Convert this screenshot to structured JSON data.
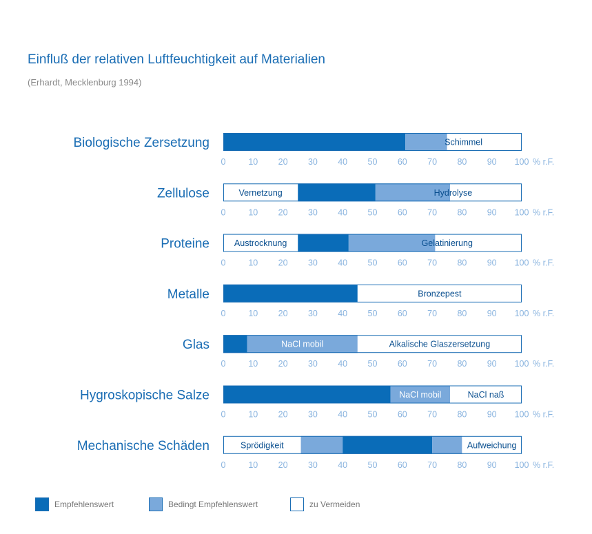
{
  "title": "Einfluß der relativen Luftfeuchtigkeit auf Materialien",
  "subtitle": "(Erhardt, Mecklenburg 1994)",
  "chart_data": {
    "type": "bar",
    "orientation": "horizontal-stacked-ranges",
    "x_ticks": [
      "0",
      "10",
      "20",
      "30",
      "40",
      "50",
      "60",
      "70",
      "80",
      "90",
      "100"
    ],
    "x_unit": "% r.F.",
    "xlim": [
      0,
      100
    ],
    "colors": {
      "empfohlen": "#0a6cb8",
      "bedingt": "#7aa9db",
      "vermeiden": "#ffffff",
      "border": "#1a6db4",
      "label": "#1a6db4",
      "tick": "#8ab4df"
    },
    "rows": [
      {
        "label": "Biologische Zersetzung",
        "segments": [
          {
            "start": 0,
            "end": 61,
            "category": "empfohlen",
            "text": ""
          },
          {
            "start": 61,
            "end": 75,
            "category": "bedingt",
            "text": ""
          },
          {
            "start": 75,
            "end": 100,
            "category": "vermeiden",
            "text": ""
          }
        ],
        "annotations": [
          {
            "text": "Schimmel",
            "at": 80.5
          }
        ]
      },
      {
        "label": "Zellulose",
        "segments": [
          {
            "start": 0,
            "end": 25,
            "category": "vermeiden",
            "text": "Vernetzung"
          },
          {
            "start": 25,
            "end": 51,
            "category": "empfohlen",
            "text": ""
          },
          {
            "start": 51,
            "end": 76,
            "category": "bedingt",
            "text": ""
          },
          {
            "start": 76,
            "end": 100,
            "category": "vermeiden",
            "text": ""
          }
        ],
        "annotations": [
          {
            "text": "Hydrolyse",
            "at": 77
          }
        ]
      },
      {
        "label": "Proteine",
        "segments": [
          {
            "start": 0,
            "end": 25,
            "category": "vermeiden",
            "text": "Austrocknung"
          },
          {
            "start": 25,
            "end": 42,
            "category": "empfohlen",
            "text": ""
          },
          {
            "start": 42,
            "end": 71,
            "category": "bedingt",
            "text": ""
          },
          {
            "start": 71,
            "end": 100,
            "category": "vermeiden",
            "text": ""
          }
        ],
        "annotations": [
          {
            "text": "Gelatinierung",
            "at": 75
          }
        ]
      },
      {
        "label": "Metalle",
        "segments": [
          {
            "start": 0,
            "end": 45,
            "category": "empfohlen",
            "text": ""
          },
          {
            "start": 45,
            "end": 100,
            "category": "vermeiden",
            "text": "Bronzepest"
          }
        ],
        "annotations": []
      },
      {
        "label": "Glas",
        "segments": [
          {
            "start": 0,
            "end": 8,
            "category": "empfohlen",
            "text": ""
          },
          {
            "start": 8,
            "end": 45,
            "category": "bedingt",
            "text": "NaCl mobil"
          },
          {
            "start": 45,
            "end": 100,
            "category": "vermeiden",
            "text": "Alkalische Glaszersetzung"
          }
        ],
        "annotations": []
      },
      {
        "label": "Hygroskopische Salze",
        "segments": [
          {
            "start": 0,
            "end": 56,
            "category": "empfohlen",
            "text": ""
          },
          {
            "start": 56,
            "end": 76,
            "category": "bedingt",
            "text": "NaCl mobil"
          },
          {
            "start": 76,
            "end": 100,
            "category": "vermeiden",
            "text": "NaCl naß"
          }
        ],
        "annotations": []
      },
      {
        "label": "Mechanische Schäden",
        "segments": [
          {
            "start": 0,
            "end": 26,
            "category": "vermeiden",
            "text": "Sprödigkeit"
          },
          {
            "start": 26,
            "end": 40,
            "category": "bedingt",
            "text": ""
          },
          {
            "start": 40,
            "end": 70,
            "category": "empfohlen",
            "text": ""
          },
          {
            "start": 70,
            "end": 80,
            "category": "bedingt",
            "text": ""
          },
          {
            "start": 80,
            "end": 100,
            "category": "vermeiden",
            "text": "Aufweichung"
          }
        ],
        "annotations": []
      }
    ],
    "legend": [
      {
        "category": "empfohlen",
        "label": "Empfehlenswert"
      },
      {
        "category": "bedingt",
        "label": "Bedingt Empfehlenswert"
      },
      {
        "category": "vermeiden",
        "label": "zu Vermeiden"
      }
    ],
    "legend_position": "bottom-left",
    "grid": false
  }
}
